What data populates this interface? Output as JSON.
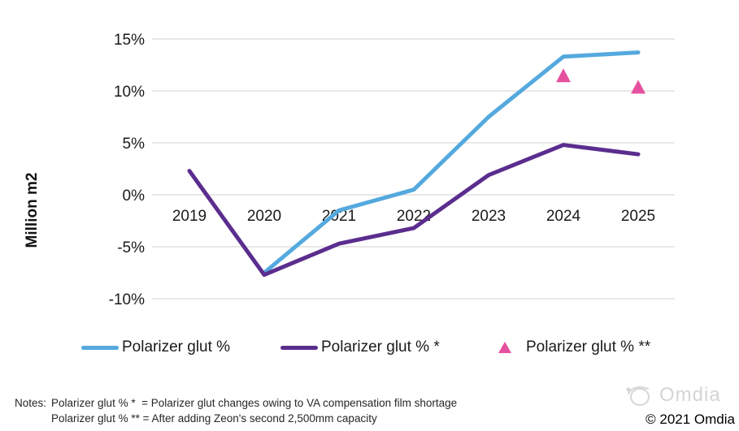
{
  "chart_data": {
    "type": "line",
    "title": "",
    "xlabel": "",
    "ylabel": "Million m2",
    "categories": [
      "2019",
      "2020",
      "2021",
      "2022",
      "2023",
      "2024",
      "2025"
    ],
    "y_ticks": [
      "15%",
      "10%",
      "5%",
      "0%",
      "-5%",
      "-10%"
    ],
    "y_tick_values": [
      15,
      10,
      5,
      0,
      -5,
      -10
    ],
    "ylim": [
      -10,
      15
    ],
    "grid": "horizontal",
    "grid_color": "#DBDBDB",
    "axis_text_color": "#1a1a1a",
    "legend_position": "bottom",
    "series": [
      {
        "name": "Polarizer glut %",
        "type": "line",
        "color": "#54A9DE",
        "values": [
          null,
          -7.5,
          -1.5,
          0.5,
          7.5,
          13.3,
          13.7
        ]
      },
      {
        "name": "Polarizer glut % *",
        "type": "line",
        "color": "#5B2D8E",
        "values": [
          2.3,
          -7.7,
          -4.7,
          -3.2,
          1.9,
          4.8,
          3.9
        ]
      },
      {
        "name": "Polarizer glut % **",
        "type": "triangle-marker",
        "color": "#E6519F",
        "values": [
          null,
          null,
          null,
          null,
          null,
          11.5,
          10.4
        ]
      }
    ]
  },
  "notes": {
    "label": "Notes:",
    "line1": "Polarizer glut % *  = Polarizer glut changes owing to VA compensation film shortage",
    "line2": "Polarizer glut % ** = After adding Zeon's second 2,500mm capacity"
  },
  "watermark": {
    "brand": "Omdia",
    "copyright": "© 2021 Omdia"
  }
}
